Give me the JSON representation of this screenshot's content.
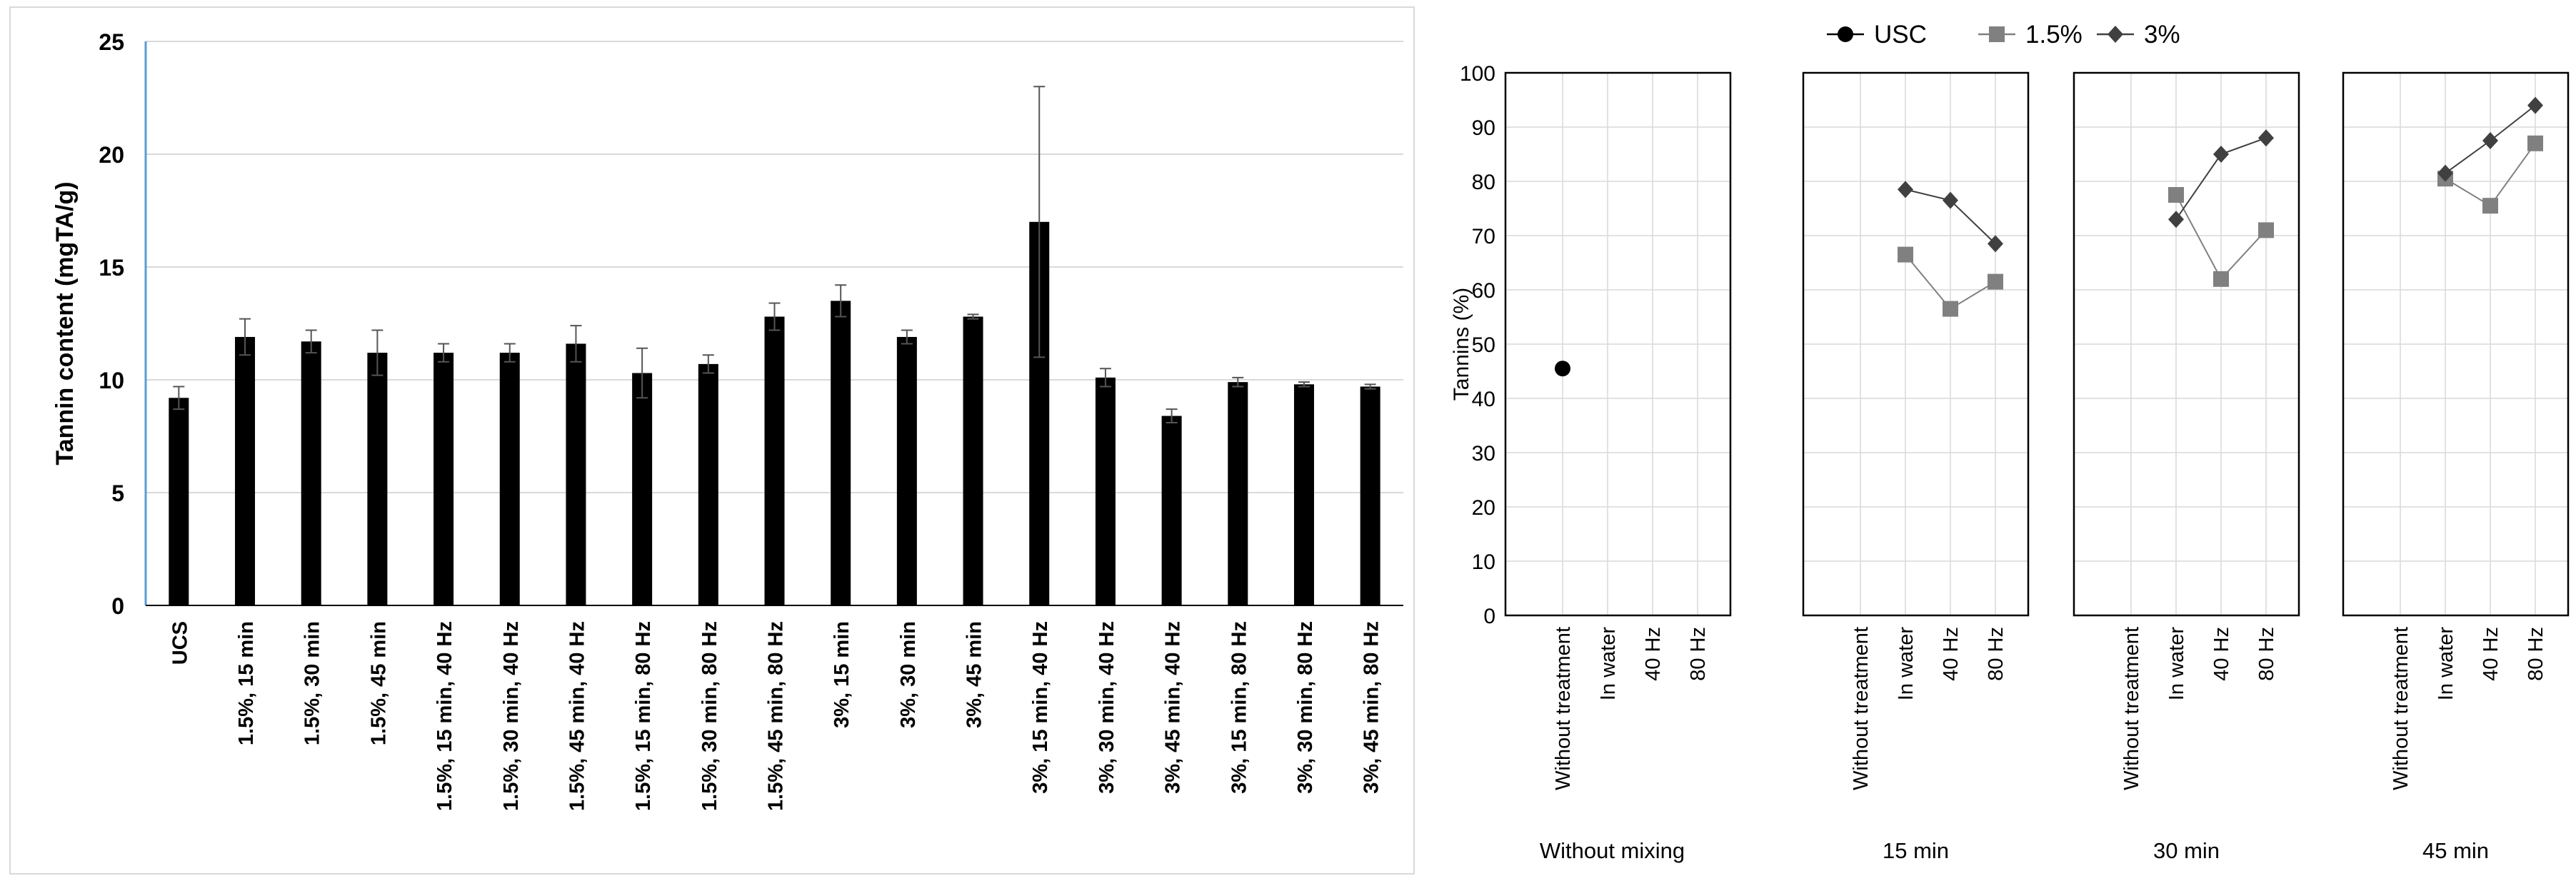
{
  "chart_data": [
    {
      "type": "bar",
      "ylabel": "Tannin content (mgTA/g)",
      "ylim": [
        0,
        25
      ],
      "yticks": [
        0,
        5,
        10,
        15,
        20,
        25
      ],
      "grid": true,
      "bar_color": "#000000",
      "categories": [
        "UCS",
        "1.5%, 15 min",
        "1.5%, 30 min",
        "1.5%, 45 min",
        "1.5%, 15 min, 40 Hz",
        "1.5%, 30 min, 40 Hz",
        "1.5%, 45 min, 40 Hz",
        "1.5%, 15 min, 80 Hz",
        "1.5%, 30 min, 80 Hz",
        "1.5%, 45 min, 80 Hz",
        "3%, 15 min",
        "3%, 30 min",
        "3%, 45 min",
        "3%, 15 min, 40 Hz",
        "3%, 30 min, 40 Hz",
        "3%, 45 min, 40 Hz",
        "3%, 15 min, 80 Hz",
        "3%, 30 min, 80 Hz",
        "3%, 45 min, 80 Hz"
      ],
      "values": [
        9.2,
        11.9,
        11.7,
        11.2,
        11.2,
        11.2,
        11.6,
        10.3,
        10.7,
        12.8,
        13.5,
        11.9,
        12.8,
        17.0,
        10.1,
        8.4,
        9.9,
        9.8,
        9.7
      ],
      "errors": [
        0.5,
        0.8,
        0.5,
        1.0,
        0.4,
        0.4,
        0.8,
        1.1,
        0.4,
        0.6,
        0.7,
        0.3,
        0.1,
        6.0,
        0.4,
        0.3,
        0.2,
        0.1,
        0.1
      ]
    },
    {
      "type": "line",
      "ylabel": "Tannins (%)",
      "ylim": [
        0,
        100
      ],
      "yticks": [
        0,
        10,
        20,
        30,
        40,
        50,
        60,
        70,
        80,
        90,
        100
      ],
      "grid": true,
      "legend_placement": "top-center",
      "x": [
        "Without treatment",
        "In water",
        "40 Hz",
        "80 Hz"
      ],
      "panels": [
        "Without mixing",
        "15 min",
        "30 min",
        "45 min"
      ],
      "series": [
        {
          "name": "USC",
          "marker": "circle",
          "color": "#000000",
          "values": [
            [
              45.5,
              null,
              null,
              null
            ],
            [
              null,
              null,
              null,
              null
            ],
            [
              null,
              null,
              null,
              null
            ],
            [
              null,
              null,
              null,
              null
            ]
          ]
        },
        {
          "name": "1.5%",
          "marker": "square",
          "color": "#808080",
          "values": [
            [
              null,
              null,
              null,
              null
            ],
            [
              null,
              66.5,
              56.5,
              61.5
            ],
            [
              null,
              77.5,
              62.0,
              71.0
            ],
            [
              null,
              80.5,
              75.5,
              87.0
            ]
          ]
        },
        {
          "name": "3%",
          "marker": "diamond",
          "color": "#404040",
          "values": [
            [
              null,
              null,
              null,
              null
            ],
            [
              null,
              78.5,
              76.5,
              68.5
            ],
            [
              null,
              73.0,
              85.0,
              88.0
            ],
            [
              null,
              81.5,
              87.5,
              94.0
            ]
          ]
        }
      ]
    }
  ]
}
